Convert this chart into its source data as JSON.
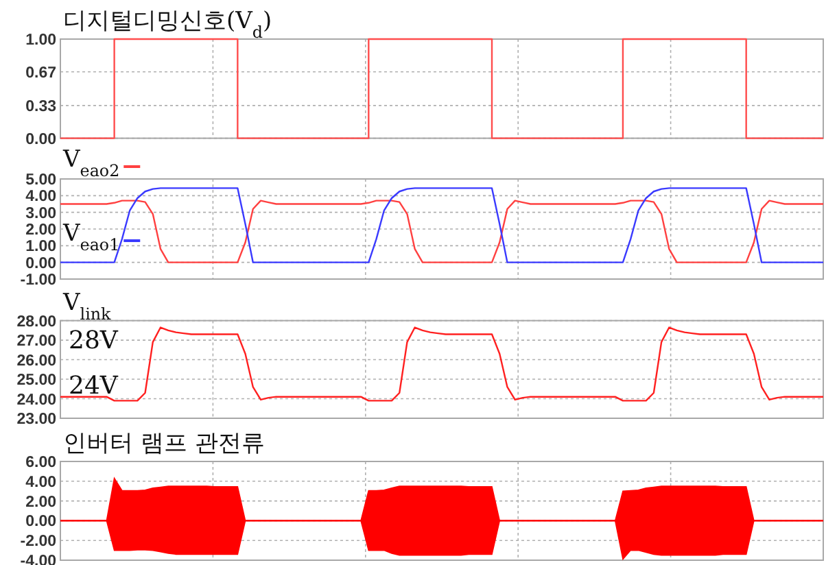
{
  "chart_data": [
    {
      "type": "step",
      "title": "디지털디밍신호(V$_{d}$)",
      "categories": [
        null,
        null,
        null,
        null,
        null,
        null,
        null,
        null,
        null,
        null,
        null,
        null,
        null,
        null,
        null,
        null,
        null,
        null,
        null,
        null,
        null,
        null,
        null,
        null,
        null,
        null,
        null,
        null,
        null,
        null,
        null,
        null,
        null,
        null,
        null,
        null,
        null,
        null,
        null,
        null,
        null,
        null,
        null,
        null,
        null,
        null,
        null,
        null,
        null,
        null,
        null,
        null,
        null,
        null,
        null,
        null,
        null,
        null,
        null,
        null,
        null,
        null,
        null,
        null,
        null,
        null,
        null,
        null,
        null,
        null,
        null,
        null,
        null,
        null,
        null,
        null,
        null,
        null,
        null,
        null,
        null,
        null,
        null,
        null,
        null,
        null,
        null,
        null,
        null,
        null,
        null,
        null,
        null,
        null,
        null,
        null,
        null,
        null,
        null,
        null
      ],
      "ylim": [
        0,
        1
      ],
      "yticks": [
        {
          "value": 0,
          "label": "0.00"
        },
        {
          "value": 0.33,
          "label": "0.33"
        },
        {
          "value": 0.67,
          "label": "0.67"
        },
        {
          "value": 1,
          "label": "1.00"
        }
      ],
      "grid": true,
      "tick_labels": "y",
      "series": [
        {
          "color": "#ff4d4d",
          "values": [
            0,
            0,
            0,
            0,
            0,
            0,
            0,
            1,
            1,
            1,
            1,
            1,
            1,
            1,
            1,
            1,
            1,
            1,
            1,
            1,
            1,
            1,
            1,
            0,
            0,
            0,
            0,
            0,
            0,
            0,
            0,
            0,
            0,
            0,
            0,
            0,
            0,
            0,
            0,
            0,
            1,
            1,
            1,
            1,
            1,
            1,
            1,
            1,
            1,
            1,
            1,
            1,
            1,
            1,
            1,
            1,
            0,
            0,
            0,
            0,
            0,
            0,
            0,
            0,
            0,
            0,
            0,
            0,
            0,
            0,
            0,
            0,
            0,
            1,
            1,
            1,
            1,
            1,
            1,
            1,
            1,
            1,
            1,
            1,
            1,
            1,
            1,
            1,
            1,
            0,
            0,
            0,
            0,
            0,
            0,
            0,
            0,
            0,
            0,
            0
          ]
        }
      ]
    },
    {
      "type": "line",
      "categories": [
        null,
        null,
        null,
        null,
        null,
        null,
        null,
        null,
        null,
        null,
        null,
        null,
        null,
        null,
        null,
        null,
        null,
        null,
        null,
        null,
        null,
        null,
        null,
        null,
        null,
        null,
        null,
        null,
        null,
        null,
        null,
        null,
        null,
        null,
        null,
        null,
        null,
        null,
        null,
        null,
        null,
        null,
        null,
        null,
        null,
        null,
        null,
        null,
        null,
        null,
        null,
        null,
        null,
        null,
        null,
        null,
        null,
        null,
        null,
        null,
        null,
        null,
        null,
        null,
        null,
        null,
        null,
        null,
        null,
        null,
        null,
        null,
        null,
        null,
        null,
        null,
        null,
        null,
        null,
        null,
        null,
        null,
        null,
        null,
        null,
        null,
        null,
        null,
        null,
        null,
        null,
        null,
        null,
        null,
        null,
        null,
        null,
        null,
        null,
        null
      ],
      "ylim": [
        -1,
        5
      ],
      "yticks": [
        {
          "value": -1,
          "label": "-1.00"
        },
        {
          "value": 0,
          "label": "0.00"
        },
        {
          "value": 1,
          "label": "1.00"
        },
        {
          "value": 2,
          "label": "2.00"
        },
        {
          "value": 3,
          "label": "3.00"
        },
        {
          "value": 4,
          "label": "4.00"
        },
        {
          "value": 5,
          "label": "5.00"
        }
      ],
      "grid": true,
      "tick_labels": "y",
      "legend": "top left",
      "series": [
        {
          "name": "V$_{eao2}$",
          "color": "#ff4040",
          "values": [
            3.5,
            3.5,
            3.5,
            3.5,
            3.5,
            3.5,
            3.5,
            3.57,
            3.7,
            3.7,
            3.7,
            3.62,
            2.9,
            0.8,
            0,
            0,
            0,
            0,
            0,
            0,
            0,
            0,
            0,
            0,
            1.2,
            3.2,
            3.7,
            3.6,
            3.5,
            3.5,
            3.5,
            3.5,
            3.5,
            3.5,
            3.5,
            3.5,
            3.5,
            3.5,
            3.5,
            3.5,
            3.57,
            3.7,
            3.7,
            3.7,
            3.62,
            2.9,
            0.8,
            0,
            0,
            0,
            0,
            0,
            0,
            0,
            0,
            0,
            0,
            1.2,
            3.2,
            3.7,
            3.6,
            3.5,
            3.5,
            3.5,
            3.5,
            3.5,
            3.5,
            3.5,
            3.5,
            3.5,
            3.5,
            3.5,
            3.5,
            3.57,
            3.7,
            3.7,
            3.7,
            3.62,
            2.9,
            0.8,
            0,
            0,
            0,
            0,
            0,
            0,
            0,
            0,
            0,
            0,
            1.2,
            3.2,
            3.7,
            3.6,
            3.5,
            3.5,
            3.5,
            3.5,
            3.5,
            3.5
          ]
        },
        {
          "name": "V$_{eao1}$",
          "color": "#3a3aff",
          "values": [
            0,
            0,
            0,
            0,
            0,
            0,
            0,
            0,
            1.4,
            3.1,
            3.85,
            4.25,
            4.4,
            4.45,
            4.45,
            4.45,
            4.45,
            4.45,
            4.45,
            4.45,
            4.45,
            4.45,
            4.45,
            4.45,
            2.3,
            0,
            0,
            0,
            0,
            0,
            0,
            0,
            0,
            0,
            0,
            0,
            0,
            0,
            0,
            0,
            0,
            1.4,
            3.1,
            3.85,
            4.25,
            4.4,
            4.45,
            4.45,
            4.45,
            4.45,
            4.45,
            4.45,
            4.45,
            4.45,
            4.45,
            4.45,
            4.45,
            2.3,
            0,
            0,
            0,
            0,
            0,
            0,
            0,
            0,
            0,
            0,
            0,
            0,
            0,
            0,
            0,
            0,
            1.4,
            3.1,
            3.85,
            4.25,
            4.4,
            4.45,
            4.45,
            4.45,
            4.45,
            4.45,
            4.45,
            4.45,
            4.45,
            4.45,
            4.45,
            4.45,
            2.3,
            0,
            0,
            0,
            0,
            0,
            0,
            0,
            0,
            0
          ]
        }
      ]
    },
    {
      "type": "line",
      "title": "V$_{link}$",
      "annotations": [
        "28V",
        "24V"
      ],
      "categories": [
        null,
        null,
        null,
        null,
        null,
        null,
        null,
        null,
        null,
        null,
        null,
        null,
        null,
        null,
        null,
        null,
        null,
        null,
        null,
        null,
        null,
        null,
        null,
        null,
        null,
        null,
        null,
        null,
        null,
        null,
        null,
        null,
        null,
        null,
        null,
        null,
        null,
        null,
        null,
        null,
        null,
        null,
        null,
        null,
        null,
        null,
        null,
        null,
        null,
        null,
        null,
        null,
        null,
        null,
        null,
        null,
        null,
        null,
        null,
        null,
        null,
        null,
        null,
        null,
        null,
        null,
        null,
        null,
        null,
        null,
        null,
        null,
        null,
        null,
        null,
        null,
        null,
        null,
        null,
        null,
        null,
        null,
        null,
        null,
        null,
        null,
        null,
        null,
        null,
        null,
        null,
        null,
        null,
        null,
        null,
        null,
        null,
        null,
        null,
        null
      ],
      "ylim": [
        23,
        28
      ],
      "yticks": [
        {
          "value": 23,
          "label": "23.00"
        },
        {
          "value": 24,
          "label": "24.00"
        },
        {
          "value": 25,
          "label": "25.00"
        },
        {
          "value": 26,
          "label": "26.00"
        },
        {
          "value": 27,
          "label": "27.00"
        },
        {
          "value": 28,
          "label": "28.00"
        }
      ],
      "grid": true,
      "tick_labels": "y",
      "series": [
        {
          "color": "#ff2020",
          "values": [
            24.1,
            24.1,
            24.1,
            24.1,
            24.1,
            24.1,
            24.1,
            23.9,
            23.9,
            23.9,
            23.9,
            24.3,
            26.9,
            27.65,
            27.5,
            27.4,
            27.35,
            27.3,
            27.3,
            27.3,
            27.3,
            27.3,
            27.3,
            27.3,
            26.3,
            24.6,
            23.95,
            24.05,
            24.1,
            24.1,
            24.1,
            24.1,
            24.1,
            24.1,
            24.1,
            24.1,
            24.1,
            24.1,
            24.1,
            24.1,
            23.9,
            23.9,
            23.9,
            23.9,
            24.3,
            26.9,
            27.65,
            27.5,
            27.4,
            27.35,
            27.3,
            27.3,
            27.3,
            27.3,
            27.3,
            27.3,
            27.3,
            26.3,
            24.6,
            23.95,
            24.05,
            24.1,
            24.1,
            24.1,
            24.1,
            24.1,
            24.1,
            24.1,
            24.1,
            24.1,
            24.1,
            24.1,
            24.1,
            23.9,
            23.9,
            23.9,
            23.9,
            24.3,
            26.9,
            27.65,
            27.5,
            27.4,
            27.35,
            27.3,
            27.3,
            27.3,
            27.3,
            27.3,
            27.3,
            27.3,
            26.3,
            24.6,
            23.95,
            24.05,
            24.1,
            24.1,
            24.1,
            24.1,
            24.1,
            24.1
          ]
        }
      ]
    },
    {
      "type": "line",
      "title": "인버터 램프 관전류",
      "categories": [
        null,
        null,
        null,
        null,
        null,
        null,
        null,
        null,
        null,
        null,
        null,
        null,
        null,
        null,
        null,
        null,
        null,
        null,
        null,
        null,
        null,
        null,
        null,
        null,
        null,
        null,
        null,
        null,
        null,
        null,
        null,
        null,
        null,
        null,
        null,
        null,
        null,
        null,
        null,
        null,
        null,
        null,
        null,
        null,
        null,
        null,
        null,
        null,
        null,
        null,
        null,
        null,
        null,
        null,
        null,
        null,
        null,
        null,
        null,
        null,
        null,
        null,
        null,
        null,
        null,
        null,
        null,
        null,
        null,
        null,
        null,
        null,
        null,
        null,
        null,
        null,
        null,
        null,
        null,
        null,
        null,
        null,
        null,
        null,
        null,
        null,
        null,
        null,
        null,
        null,
        null,
        null,
        null,
        null,
        null,
        null,
        null,
        null,
        null,
        null
      ],
      "ylim": [
        -4,
        6
      ],
      "yticks": [
        {
          "value": -4,
          "label": "-4.00"
        },
        {
          "value": -2,
          "label": "-2.00"
        },
        {
          "value": 0,
          "label": "0.00"
        },
        {
          "value": 2,
          "label": "2.00"
        },
        {
          "value": 4,
          "label": "4.00"
        },
        {
          "value": 6,
          "label": "6.00"
        }
      ],
      "grid": true,
      "tick_labels": "y",
      "series": [
        {
          "color": "#ff0000",
          "values": [
            0,
            0,
            0,
            0,
            0,
            0,
            0,
            0,
            0,
            0,
            0,
            0,
            0,
            0,
            0,
            0,
            0,
            0,
            0,
            0,
            0,
            0,
            0,
            0,
            0,
            0,
            0,
            0,
            0,
            0,
            0,
            0,
            0,
            0,
            0,
            0,
            0,
            0,
            0,
            0,
            0,
            0,
            0,
            0,
            0,
            0,
            0,
            0,
            0,
            0,
            0,
            0,
            0,
            0,
            0,
            0,
            0,
            0,
            0,
            0,
            0,
            0,
            0,
            0,
            0,
            0,
            0,
            0,
            0,
            0,
            0,
            0,
            0,
            0,
            0,
            0,
            0,
            0,
            0,
            0,
            0,
            0,
            0,
            0,
            0,
            0,
            0,
            0,
            0,
            0,
            0,
            0,
            0,
            0,
            0,
            0,
            0,
            0,
            0,
            0
          ],
          "lower": [
            0,
            0,
            0,
            0,
            0,
            0,
            0,
            -3.0,
            -3.0,
            -3.0,
            -2.95,
            -2.95,
            -3.0,
            -3.15,
            -3.3,
            -3.4,
            -3.4,
            -3.4,
            -3.4,
            -3.4,
            -3.4,
            -3.4,
            -3.4,
            -3.4,
            0,
            0,
            0,
            0,
            0,
            0,
            0,
            0,
            0,
            0,
            0,
            0,
            0,
            0,
            0,
            0,
            -3.0,
            -3.0,
            -3.0,
            -3.3,
            -3.5,
            -3.5,
            -3.5,
            -3.5,
            -3.5,
            -3.5,
            -3.5,
            -3.5,
            -3.5,
            -3.4,
            -3.4,
            -3.4,
            -3.4,
            0,
            0,
            0,
            0,
            0,
            0,
            0,
            0,
            0,
            0,
            0,
            0,
            0,
            0,
            0,
            0,
            -3.9,
            -3.0,
            -3.0,
            -3.2,
            -3.4,
            -3.5,
            -3.5,
            -3.5,
            -3.5,
            -3.5,
            -3.5,
            -3.5,
            -3.5,
            -3.4,
            -3.4,
            -3.4,
            -3.4,
            0,
            0,
            0,
            0,
            0,
            0,
            0,
            0,
            0,
            0
          ],
          "upper": [
            0,
            0,
            0,
            0,
            0,
            0,
            0,
            4.3,
            3.05,
            3.05,
            3.05,
            3.1,
            3.3,
            3.4,
            3.5,
            3.5,
            3.5,
            3.5,
            3.5,
            3.5,
            3.45,
            3.45,
            3.45,
            3.45,
            0,
            0,
            0,
            0,
            0,
            0,
            0,
            0,
            0,
            0,
            0,
            0,
            0,
            0,
            0,
            0,
            3.05,
            3.05,
            3.1,
            3.3,
            3.5,
            3.5,
            3.5,
            3.5,
            3.5,
            3.5,
            3.5,
            3.5,
            3.5,
            3.45,
            3.45,
            3.45,
            3.45,
            0,
            0,
            0,
            0,
            0,
            0,
            0,
            0,
            0,
            0,
            0,
            0,
            0,
            0,
            0,
            0,
            3.0,
            3.05,
            3.1,
            3.3,
            3.4,
            3.5,
            3.5,
            3.5,
            3.5,
            3.5,
            3.5,
            3.5,
            3.5,
            3.45,
            3.45,
            3.45,
            3.45,
            0,
            0,
            0,
            0,
            0,
            0,
            0,
            0,
            0,
            0
          ]
        }
      ]
    }
  ]
}
